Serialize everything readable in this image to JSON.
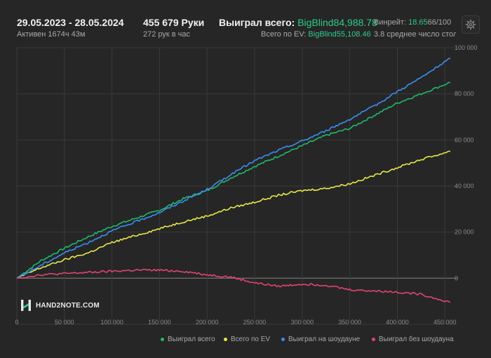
{
  "header": {
    "date_range": "29.05.2023 - 28.05.2024",
    "active_time": "Активен 1674ч 43м",
    "hands_count": "455 679 Руки",
    "hands_rate": "272 рук в час",
    "won_total_label": "Выиграл всего:",
    "won_total_value": "BigBlind84,988.78",
    "ev_label": "Всего по EV:",
    "ev_value": "BigBlind55,108.46",
    "winrate_label": "Винрейт:",
    "winrate_value": "18.65",
    "winrate_suffix": "66/100",
    "avg_tables": "3.8 среднее число столов"
  },
  "icons": {
    "settings": "gear-icon",
    "logo": "hand2note-logo"
  },
  "logo_text": "HAND2NOTE.COM",
  "colors": {
    "won_total": "#21b86b",
    "all_in_ev": "#e6e84a",
    "won_showdown": "#3b8ef0",
    "won_no_showdown": "#e0456f",
    "accent": "#2ecc87"
  },
  "chart_data": {
    "type": "line",
    "x_ticks": [
      "0",
      "50 000",
      "100 000",
      "150 000",
      "200 000",
      "250 000",
      "300 000",
      "350 000",
      "400 000",
      "450 000"
    ],
    "y_ticks": [
      "100 000",
      "80 000",
      "60 000",
      "40 000",
      "20 000",
      "0"
    ],
    "xlim": [
      0,
      455679
    ],
    "ylim": [
      -20000,
      100000
    ],
    "grid": true,
    "legend_position": "bottom",
    "x": [
      0,
      25000,
      50000,
      75000,
      100000,
      125000,
      150000,
      175000,
      200000,
      225000,
      250000,
      275000,
      300000,
      325000,
      350000,
      375000,
      400000,
      425000,
      455679
    ],
    "series": [
      {
        "name": "Выиграл всего",
        "color": "#21b86b",
        "values": [
          0,
          7500,
          13000,
          18000,
          22500,
          26000,
          29500,
          34500,
          38000,
          43500,
          48500,
          53000,
          57500,
          62000,
          65000,
          70500,
          76000,
          80000,
          85000
        ]
      },
      {
        "name": "Всего по EV",
        "color": "#e6e84a",
        "values": [
          0,
          4500,
          8000,
          11000,
          15500,
          18500,
          21500,
          24500,
          27000,
          30500,
          33000,
          36000,
          38000,
          39000,
          41000,
          44500,
          48000,
          51500,
          55100
        ]
      },
      {
        "name": "Выиграл на шоудауне",
        "color": "#3b8ef0",
        "values": [
          0,
          5500,
          11000,
          15500,
          20500,
          24500,
          28500,
          33500,
          38500,
          45000,
          51000,
          55500,
          59500,
          64000,
          69000,
          74500,
          81000,
          87000,
          95500
        ]
      },
      {
        "name": "Выиграл без шоудауна",
        "color": "#e0456f",
        "values": [
          0,
          1500,
          2000,
          2500,
          3000,
          3500,
          3500,
          3000,
          1500,
          500,
          -2000,
          -3500,
          -2500,
          -3000,
          -5000,
          -5500,
          -6000,
          -7000,
          -10500
        ]
      }
    ]
  }
}
